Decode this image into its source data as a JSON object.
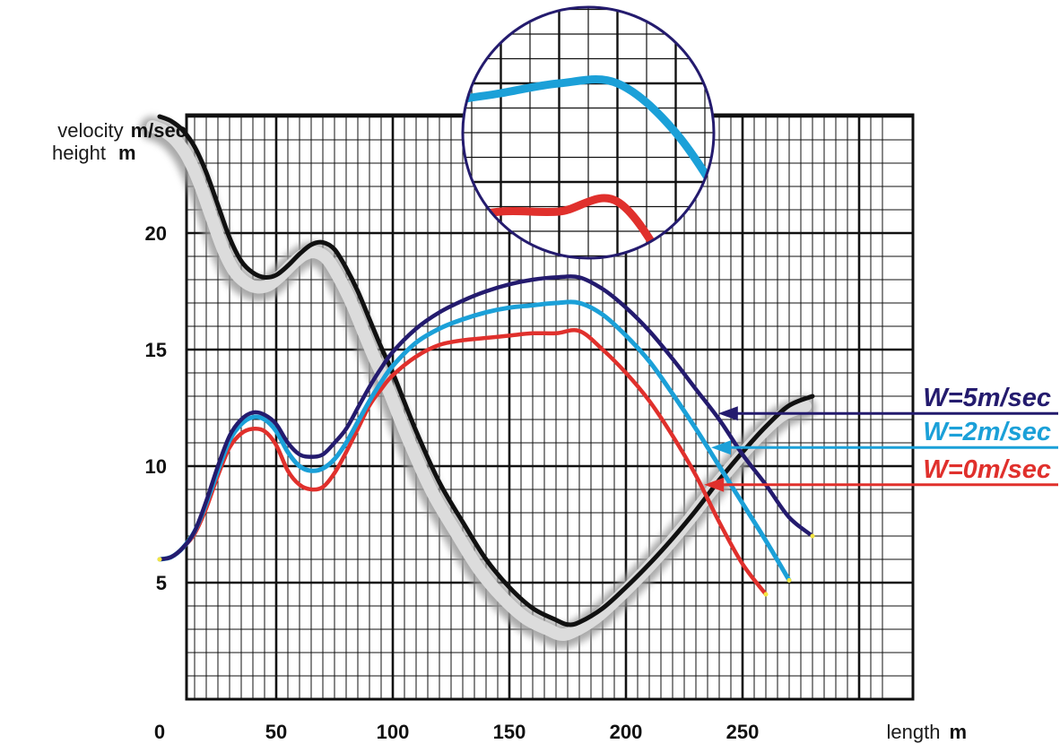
{
  "chart_data": {
    "type": "line",
    "ylabel_lines": [
      {
        "quantity": "velocity",
        "unit": "m/sec"
      },
      {
        "quantity": "height",
        "unit": "m"
      }
    ],
    "xlabel": {
      "quantity": "length",
      "unit": "m"
    },
    "xlim": [
      0,
      300
    ],
    "ylim": [
      0,
      25
    ],
    "x_ticks": [
      0,
      50,
      100,
      150,
      200,
      250
    ],
    "x_tick_labels": [
      "0",
      "50",
      "100",
      "150",
      "200",
      "250"
    ],
    "y_ticks": [
      5,
      10,
      15,
      20
    ],
    "y_tick_labels": [
      "5",
      "10",
      "15",
      "20"
    ],
    "grid": true,
    "legend_position": "right",
    "series": [
      {
        "name": "W=5m/sec",
        "color": "#241b6e",
        "x": [
          0,
          5,
          10,
          15,
          20,
          25,
          30,
          35,
          40,
          45,
          50,
          55,
          60,
          65,
          70,
          75,
          80,
          85,
          90,
          95,
          100,
          110,
          120,
          130,
          140,
          150,
          160,
          170,
          180,
          190,
          200,
          210,
          220,
          230,
          240,
          250,
          260,
          270,
          280
        ],
        "values": [
          6.0,
          6.1,
          6.5,
          7.2,
          8.5,
          10.0,
          11.3,
          12.0,
          12.3,
          12.2,
          11.8,
          11.0,
          10.5,
          10.4,
          10.5,
          11.0,
          11.6,
          12.5,
          13.4,
          14.2,
          14.9,
          15.9,
          16.6,
          17.1,
          17.5,
          17.8,
          18.0,
          18.1,
          18.1,
          17.6,
          16.8,
          15.8,
          14.6,
          13.3,
          12.0,
          10.5,
          9.2,
          7.8,
          7.0
        ]
      },
      {
        "name": "W=2m/sec",
        "color": "#1ba0d8",
        "x": [
          0,
          5,
          10,
          15,
          20,
          25,
          30,
          35,
          40,
          45,
          50,
          55,
          60,
          65,
          70,
          75,
          80,
          85,
          90,
          95,
          100,
          110,
          120,
          130,
          140,
          150,
          160,
          170,
          180,
          190,
          200,
          210,
          220,
          230,
          240,
          250,
          260,
          270
        ],
        "values": [
          6.0,
          6.1,
          6.5,
          7.2,
          8.4,
          9.8,
          11.1,
          11.8,
          12.1,
          12.0,
          11.5,
          10.6,
          10.0,
          9.8,
          9.9,
          10.3,
          11.0,
          11.9,
          12.8,
          13.6,
          14.3,
          15.3,
          15.9,
          16.3,
          16.6,
          16.8,
          16.9,
          17.0,
          17.0,
          16.5,
          15.6,
          14.5,
          13.1,
          11.6,
          10.0,
          8.4,
          6.8,
          5.1
        ]
      },
      {
        "name": "W=0m/sec",
        "color": "#e0302c",
        "x": [
          0,
          5,
          10,
          15,
          20,
          25,
          30,
          35,
          40,
          45,
          50,
          55,
          60,
          65,
          70,
          75,
          80,
          85,
          90,
          95,
          100,
          110,
          120,
          130,
          140,
          150,
          160,
          170,
          180,
          190,
          200,
          210,
          220,
          230,
          240,
          250,
          260
        ],
        "values": [
          6.0,
          6.1,
          6.5,
          7.1,
          8.2,
          9.6,
          10.8,
          11.4,
          11.6,
          11.5,
          10.9,
          9.8,
          9.2,
          9.0,
          9.1,
          9.7,
          10.6,
          11.6,
          12.6,
          13.3,
          13.9,
          14.7,
          15.2,
          15.4,
          15.5,
          15.6,
          15.7,
          15.7,
          15.8,
          15.0,
          14.0,
          12.8,
          11.3,
          9.6,
          7.6,
          5.8,
          4.5
        ]
      },
      {
        "name": "height",
        "color": "#111111",
        "x": [
          0,
          5,
          10,
          15,
          20,
          25,
          30,
          35,
          40,
          45,
          50,
          55,
          60,
          65,
          70,
          75,
          80,
          85,
          90,
          95,
          100,
          110,
          120,
          130,
          140,
          150,
          160,
          170,
          175,
          180,
          190,
          200,
          210,
          220,
          230,
          240,
          250,
          260,
          270,
          280
        ],
        "values": [
          25.0,
          24.8,
          24.4,
          23.7,
          22.6,
          21.2,
          19.8,
          18.8,
          18.3,
          18.1,
          18.2,
          18.6,
          19.1,
          19.5,
          19.6,
          19.3,
          18.5,
          17.5,
          16.3,
          15.1,
          14.0,
          11.5,
          9.3,
          7.6,
          6.0,
          4.8,
          3.9,
          3.4,
          3.2,
          3.3,
          3.9,
          4.8,
          5.8,
          6.9,
          8.1,
          9.4,
          10.6,
          11.7,
          12.6,
          13.0
        ]
      }
    ]
  }
}
